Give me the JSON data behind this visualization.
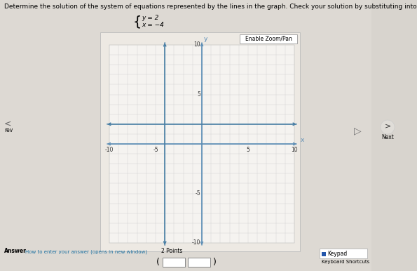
{
  "title": "Determine the solution of the system of equations represented by the lines in the graph. Check your solution by substituting into both equations.",
  "equations_line1": "y = 2",
  "equations_line2": "x = -4",
  "xlim": [
    -10,
    10
  ],
  "ylim": [
    -10,
    10
  ],
  "x_ticks": [
    -10,
    -5,
    5,
    10
  ],
  "y_ticks": [
    -10,
    -5,
    5,
    10
  ],
  "x_tick_labels": [
    "-10",
    "-5",
    "5",
    "10"
  ],
  "y_tick_labels": [
    "-10",
    "-5",
    "5",
    "10"
  ],
  "horizontal_line_y": 2,
  "vertical_line_x": -4,
  "line_color": "#4a7fa5",
  "axis_color": "#5b8db5",
  "grid_color": "#d0d0d0",
  "page_bg": "#ddd9d3",
  "panel_bg": "#e8e4de",
  "graph_bg": "#f5f3f0",
  "axis_label_x": "x",
  "axis_label_y": "y",
  "enable_zoom_pan_text": "Enable Zoom/Pan",
  "right_panel_bg": "#d8d4ce",
  "font_size_title": 6.5,
  "font_size_tick": 5.5,
  "font_size_axis_label": 7
}
